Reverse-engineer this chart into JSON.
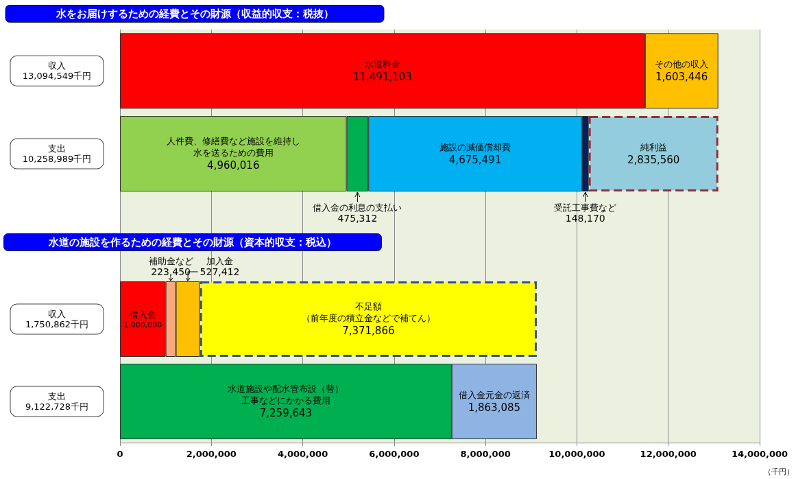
{
  "chart_data": [
    {
      "type": "bar",
      "orientation": "horizontal",
      "stacked": true,
      "title": "水をお届けするための経費とその財源（収益的収支：税抜）",
      "categories": [
        "収入\n13,094,549千円",
        "支出\n10,258,989千円"
      ],
      "xlim": [
        0,
        14000000
      ],
      "xticks": [
        0,
        2000000,
        4000000,
        6000000,
        8000000,
        10000000,
        12000000,
        14000000
      ],
      "tick_labels": "y",
      "grid": "x",
      "series": [
        {
          "name": "水道料金",
          "color": "#ff0000",
          "values": [
            11491103,
            null
          ],
          "value_labels": [
            "11,491,103",
            null
          ]
        },
        {
          "name": "その他の収入",
          "color": "#ffc000",
          "values": [
            1603446,
            null
          ],
          "value_labels": [
            "1,603,446",
            null
          ]
        },
        {
          "name": "人件費、修繕費など施設を維持し水を送るための費用",
          "color": "#92d050",
          "values": [
            null,
            4960016
          ],
          "value_labels": [
            null,
            "4,960,016"
          ]
        },
        {
          "name": "借入金の利息の支払い",
          "color": "#00b050",
          "values": [
            null,
            475312
          ],
          "value_labels": [
            null,
            "475,312"
          ]
        },
        {
          "name": "施設の減価償却費",
          "color": "#00b0f0",
          "values": [
            null,
            4675491
          ],
          "value_labels": [
            null,
            "4,675,491"
          ]
        },
        {
          "name": "受託工事費など",
          "color": "#002060",
          "values": [
            null,
            148170
          ],
          "value_labels": [
            null,
            "148,170"
          ]
        },
        {
          "name": "純利益",
          "color": "#93cddd",
          "values": [
            null,
            2835560
          ],
          "value_labels": [
            null,
            "2,835,560"
          ],
          "line_style": "dashed"
        }
      ]
    },
    {
      "type": "bar",
      "orientation": "horizontal",
      "stacked": true,
      "title": "水道の施設を作るための経費とその財源（資本的収支：税込）",
      "categories": [
        "収入\n1,750,862千円",
        "支出\n9,122,728千円"
      ],
      "xlabel": "（千円）",
      "xlim": [
        0,
        14000000
      ],
      "xticks": [
        0,
        {
          "value": 2000000,
          "label": "2,000,000"
        },
        {
          "value": 4000000,
          "label": "4,000,000"
        },
        {
          "value": 6000000,
          "label": "6,000,000"
        },
        {
          "value": 8000000,
          "label": "8,000,000"
        },
        {
          "value": 10000000,
          "label": "10,000,000"
        },
        {
          "value": 12000000,
          "label": "12,000,000"
        },
        {
          "value": 14000000,
          "label": "14,000,000"
        }
      ],
      "grid": "x",
      "series": [
        {
          "name": "借入金",
          "color": "#ff0000",
          "values": [
            1000000,
            null
          ],
          "value_labels": [
            "1,000,000",
            null
          ]
        },
        {
          "name": "補助金など",
          "color": "#f8ab80",
          "values": [
            223450,
            null
          ],
          "value_labels": [
            "223,450",
            null
          ]
        },
        {
          "name": "加入金",
          "color": "#ffc000",
          "values": [
            527412,
            null
          ],
          "value_labels": [
            "527,412",
            null
          ]
        },
        {
          "name": "不足額（前年度の積立金などで補てん）",
          "color": "#ffff00",
          "values": [
            7371866,
            null
          ],
          "value_labels": [
            "7,371,866",
            null
          ],
          "line_style": "dashed"
        },
        {
          "name": "水道施設や配水管布設（替）工事などにかかる費用",
          "color": "#00b050",
          "values": [
            null,
            7259643
          ],
          "value_labels": [
            null,
            "7,259,643"
          ]
        },
        {
          "name": "借入金元金の返済",
          "color": "#8eb4e3",
          "values": [
            null,
            1863085
          ],
          "value_labels": [
            null,
            "1,863,085"
          ]
        }
      ]
    }
  ]
}
